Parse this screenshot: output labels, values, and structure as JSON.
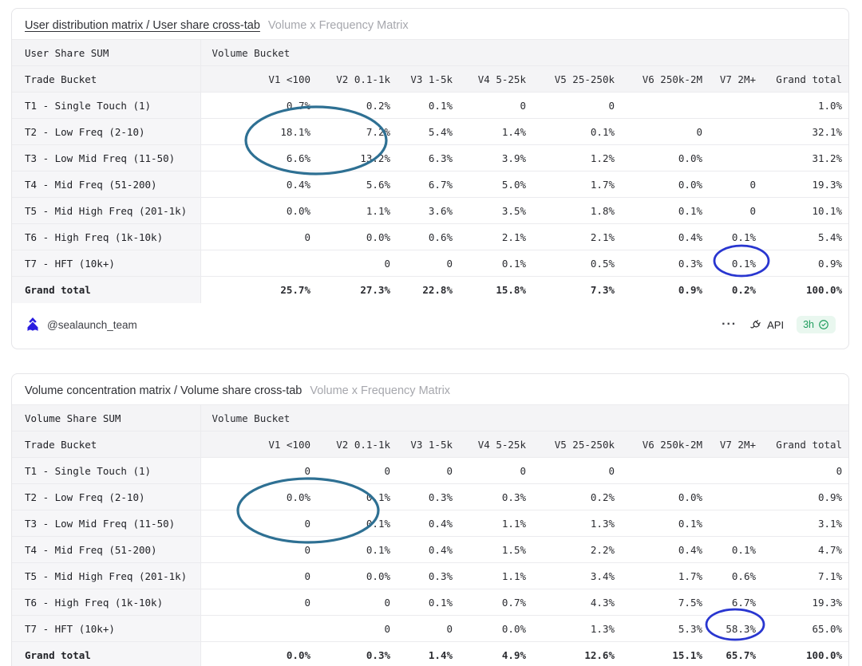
{
  "columns": [
    "V1 <100",
    "V2 0.1-1k",
    "V3 1-5k",
    "V4 5-25k",
    "V5 25-250k",
    "V6 250k-2M",
    "V7 2M+",
    "Grand total"
  ],
  "cards": [
    {
      "title": "User distribution matrix / User share cross-tab",
      "subtitle": "Volume x Frequency Matrix",
      "measure_label": "User Share SUM",
      "dimension_label": "Volume Bucket",
      "row_header": "Trade Bucket",
      "rows": [
        {
          "label": "T1 - Single Touch (1)",
          "values": [
            "0.7%",
            "0.2%",
            "0.1%",
            "0",
            "0",
            "",
            "",
            "1.0%"
          ]
        },
        {
          "label": "T2 - Low Freq (2-10)",
          "values": [
            "18.1%",
            "7.2%",
            "5.4%",
            "1.4%",
            "0.1%",
            "0",
            "",
            "32.1%"
          ]
        },
        {
          "label": "T3 - Low Mid Freq (11-50)",
          "values": [
            "6.6%",
            "13.2%",
            "6.3%",
            "3.9%",
            "1.2%",
            "0.0%",
            "",
            "31.2%"
          ]
        },
        {
          "label": "T4 - Mid Freq (51-200)",
          "values": [
            "0.4%",
            "5.6%",
            "6.7%",
            "5.0%",
            "1.7%",
            "0.0%",
            "0",
            "19.3%"
          ]
        },
        {
          "label": "T5 - Mid High Freq (201-1k)",
          "values": [
            "0.0%",
            "1.1%",
            "3.6%",
            "3.5%",
            "1.8%",
            "0.1%",
            "0",
            "10.1%"
          ]
        },
        {
          "label": "T6 - High Freq (1k-10k)",
          "values": [
            "0",
            "0.0%",
            "0.6%",
            "2.1%",
            "2.1%",
            "0.4%",
            "0.1%",
            "5.4%"
          ]
        },
        {
          "label": "T7 - HFT (10k+)",
          "values": [
            "",
            "0",
            "0",
            "0.1%",
            "0.5%",
            "0.3%",
            "0.1%",
            "0.9%"
          ]
        },
        {
          "label": "Grand total",
          "values": [
            "25.7%",
            "27.3%",
            "22.8%",
            "15.8%",
            "7.3%",
            "0.9%",
            "0.2%",
            "100.0%"
          ],
          "is_total": true
        }
      ],
      "footer": {
        "handle": "@sealaunch_team",
        "more_label": "···",
        "api_label": "API",
        "refresh_age": "3h"
      }
    },
    {
      "title": "Volume concentration matrix / Volume share cross-tab",
      "subtitle": "Volume x Frequency Matrix",
      "measure_label": "Volume Share SUM",
      "dimension_label": "Volume Bucket",
      "row_header": "Trade Bucket",
      "rows": [
        {
          "label": "T1 - Single Touch (1)",
          "values": [
            "0",
            "0",
            "0",
            "0",
            "0",
            "",
            "",
            "0"
          ]
        },
        {
          "label": "T2 - Low Freq (2-10)",
          "values": [
            "0.0%",
            "0.1%",
            "0.3%",
            "0.3%",
            "0.2%",
            "0.0%",
            "",
            "0.9%"
          ]
        },
        {
          "label": "T3 - Low Mid Freq (11-50)",
          "values": [
            "0",
            "0.1%",
            "0.4%",
            "1.1%",
            "1.3%",
            "0.1%",
            "",
            "3.1%"
          ]
        },
        {
          "label": "T4 - Mid Freq (51-200)",
          "values": [
            "0",
            "0.1%",
            "0.4%",
            "1.5%",
            "2.2%",
            "0.4%",
            "0.1%",
            "4.7%"
          ]
        },
        {
          "label": "T5 - Mid High Freq (201-1k)",
          "values": [
            "0",
            "0.0%",
            "0.3%",
            "1.1%",
            "3.4%",
            "1.7%",
            "0.6%",
            "7.1%"
          ]
        },
        {
          "label": "T6 - High Freq (1k-10k)",
          "values": [
            "0",
            "0",
            "0.1%",
            "0.7%",
            "4.3%",
            "7.5%",
            "6.7%",
            "19.3%"
          ]
        },
        {
          "label": "T7 - HFT (10k+)",
          "values": [
            "",
            "0",
            "0",
            "0.0%",
            "1.3%",
            "5.3%",
            "58.3%",
            "65.0%"
          ]
        },
        {
          "label": "Grand total",
          "values": [
            "0.0%",
            "0.3%",
            "1.4%",
            "4.9%",
            "12.6%",
            "15.1%",
            "65.7%",
            "100.0%"
          ],
          "is_total": true
        }
      ]
    }
  ],
  "annotations": [
    {
      "card": "user-distribution",
      "target": "T2-T3 x V1-V2 cells (18.1%, 7.2%, 6.6%, 13.2%)",
      "color": "#2e7093"
    },
    {
      "card": "user-distribution",
      "target": "T7 x V7 cell (0.1%)",
      "color": "#2936d0"
    },
    {
      "card": "volume-concentration",
      "target": "T2-T3 x V1-V2 cells (0.0%, 0.1%, 0, 0.1%)",
      "color": "#2e7093"
    },
    {
      "card": "volume-concentration",
      "target": "T7 x V7 cell (58.3%)",
      "color": "#2936d0"
    }
  ],
  "colors": {
    "big_ellipse": "#2e7093",
    "small_ellipse": "#2936d0",
    "logo_blue": "#2a1de0",
    "badge_green_bg": "#e9f7ef",
    "badge_green_text": "#1f9d5d",
    "header_bg": "#f4f4f6",
    "subtitle_gray": "#a6a7ad"
  }
}
